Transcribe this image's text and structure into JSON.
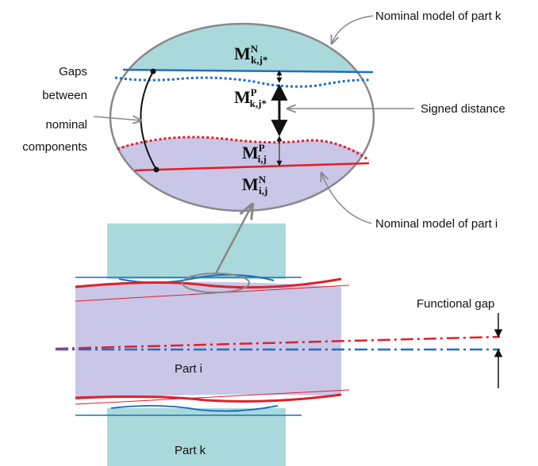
{
  "callouts": {
    "part_k": "Nominal model  of part k",
    "signed_distance": "Signed distance",
    "part_i": "Nominal model  of part i",
    "functional_gap": "Functional gap"
  },
  "gaps_label": [
    "Gaps",
    "between",
    "nominal",
    "components"
  ],
  "symbols": [
    {
      "base": "M",
      "sup": "N",
      "sub": "k,j*"
    },
    {
      "base": "M",
      "sup": "P",
      "sub": "k,j*"
    },
    {
      "base": "M",
      "sup": "P",
      "sub": "i,j"
    },
    {
      "base": "M",
      "sup": "N",
      "sub": "i,j"
    }
  ],
  "parts": [
    "Part i",
    "Part k"
  ]
}
